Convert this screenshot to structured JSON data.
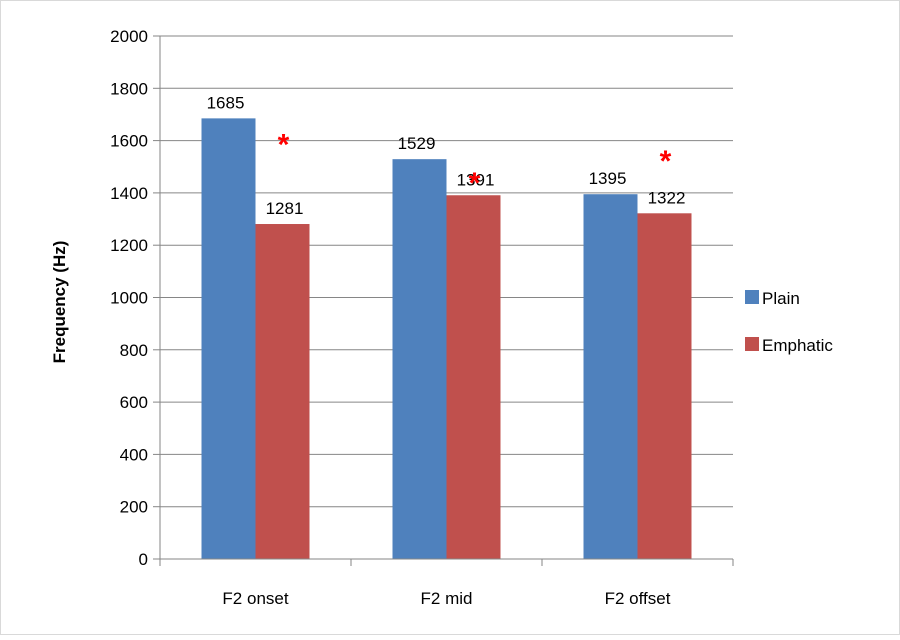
{
  "chart_data": {
    "type": "bar",
    "ylabel": "Frequency (Hz)",
    "ylim": [
      0,
      2000
    ],
    "yticks": [
      0,
      200,
      400,
      600,
      800,
      1000,
      1200,
      1400,
      1600,
      1800,
      2000
    ],
    "grid": true,
    "legend_position": "right",
    "categories": [
      "F2 onset",
      "F2 mid",
      "F2 offset"
    ],
    "series": [
      {
        "name": "Plain",
        "color": "#4f81bd",
        "values": [
          1685,
          1529,
          1395
        ]
      },
      {
        "name": "Emphatic",
        "color": "#c0504d",
        "values": [
          1281,
          1391,
          1322
        ]
      }
    ],
    "annotations": [
      {
        "text": "*",
        "category": "F2 onset",
        "color": "#ff0000"
      },
      {
        "text": "*",
        "category": "F2 mid",
        "color": "#ff0000"
      },
      {
        "text": "*",
        "category": "F2 offset",
        "color": "#ff0000"
      }
    ]
  }
}
